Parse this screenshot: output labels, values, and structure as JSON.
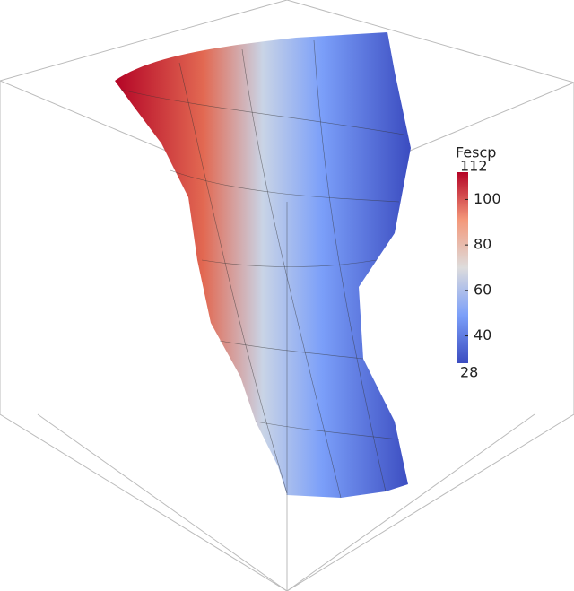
{
  "colorbar": {
    "title": "Fescp",
    "range": [
      28,
      112
    ],
    "ticks": [
      40,
      60,
      80,
      100
    ]
  }
}
